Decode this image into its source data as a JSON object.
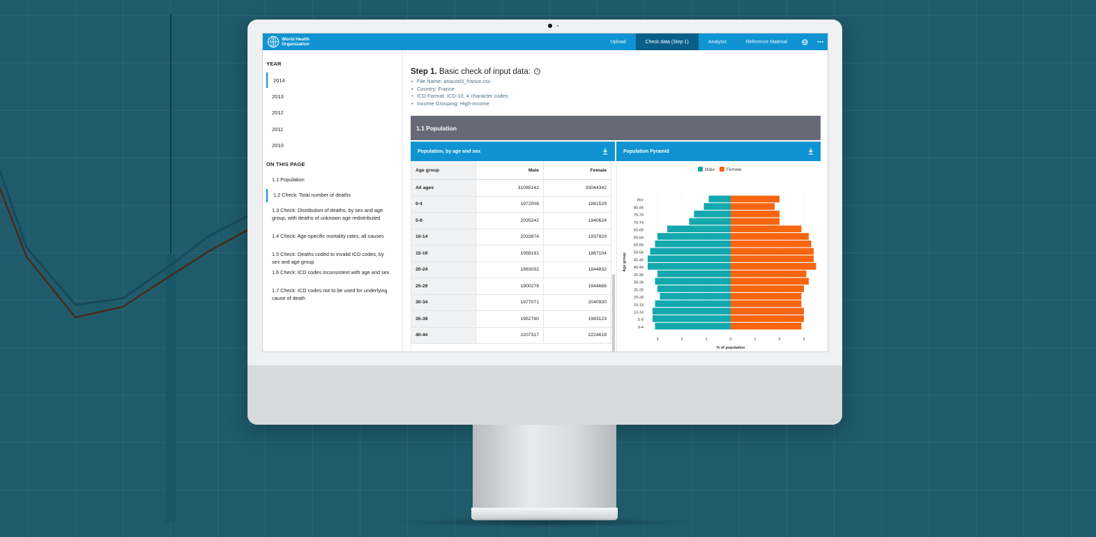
{
  "header": {
    "org_name": "World Health Organization",
    "nav": [
      "Upload",
      "Check data (Step 1)",
      "Analysis",
      "Reference Material"
    ],
    "active_nav": "Check data (Step 1)",
    "globe_icon": "globe-icon",
    "more_icon": "more-icon"
  },
  "sidebar": {
    "year_heading": "YEAR",
    "years": [
      "2014",
      "2013",
      "2012",
      "2011",
      "2010"
    ],
    "toc_heading": "ON THIS PAGE",
    "toc": [
      "1.1 Population",
      "1.2 Check: Total number of deaths",
      "1.3 Check: Distribution of deaths, by sex and age group, with deaths of unknown age redistributed",
      "1.4 Check: Age-specific mortality rates, all causes",
      "1.5 Check: Deaths coded to invalid ICD codes, by sex and age group",
      "1.6 Check: ICD codes inconsistent with age and sex",
      "1.7 Check: ICD codes not to be used for underlying cause of death"
    ]
  },
  "main": {
    "step_bold": "Step 1.",
    "step_text": "Basic check of input data:",
    "meta": [
      "File Name: anacod3_france.csv",
      "Country: France",
      "ICD Format: ICD-10, 4 character codes",
      "Income Grouping: High-income"
    ],
    "section_title": "1.1 Population",
    "table_panel_title": "Population, by age and sex",
    "chart_panel_title": "Population Pyramid",
    "table": {
      "headers": [
        "Age group",
        "Male",
        "Female"
      ],
      "rows": [
        [
          "All ages",
          "31085142",
          "33044342"
        ],
        [
          "0-4",
          "1972008",
          "1881529"
        ],
        [
          "5-9",
          "2035242",
          "1940624"
        ],
        [
          "10-14",
          "2033874",
          "1937929"
        ],
        [
          "15-19",
          "1958191",
          "1867104"
        ],
        [
          "20-24",
          "1883032",
          "1844832"
        ],
        [
          "25-29",
          "1900279",
          "1944688"
        ],
        [
          "30-34",
          "1977071",
          "2040930"
        ],
        [
          "35-39",
          "1952780",
          "1983123"
        ],
        [
          "40-44",
          "2207317",
          "2224618"
        ]
      ]
    }
  },
  "chart_data": {
    "type": "bar",
    "title": "Population Pyramid",
    "xlabel": "% of population",
    "ylabel": "Age group",
    "categories": [
      "0-4",
      "5-9",
      "10-14",
      "15-19",
      "20-24",
      "25-29",
      "30-34",
      "35-39",
      "40-44",
      "45-49",
      "50-54",
      "55-59",
      "60-64",
      "65-69",
      "70-74",
      "75-79",
      "80-84",
      "85+"
    ],
    "series": [
      {
        "name": "Male",
        "color": "#13a8ad",
        "values": [
          3.1,
          3.2,
          3.2,
          3.1,
          2.9,
          3.0,
          3.1,
          3.0,
          3.4,
          3.4,
          3.3,
          3.1,
          3.0,
          2.6,
          1.7,
          1.5,
          1.1,
          0.9
        ]
      },
      {
        "name": "Female",
        "color": "#f7650f",
        "values": [
          2.9,
          3.0,
          3.0,
          2.9,
          2.9,
          3.0,
          3.2,
          3.1,
          3.5,
          3.4,
          3.4,
          3.3,
          3.2,
          2.9,
          2.0,
          2.0,
          1.8,
          2.0
        ]
      }
    ],
    "xticks": [
      "3",
      "2",
      "1",
      "0",
      "1",
      "2",
      "3"
    ],
    "xlim": [
      -3.5,
      3.5
    ],
    "legend": "top-center"
  }
}
